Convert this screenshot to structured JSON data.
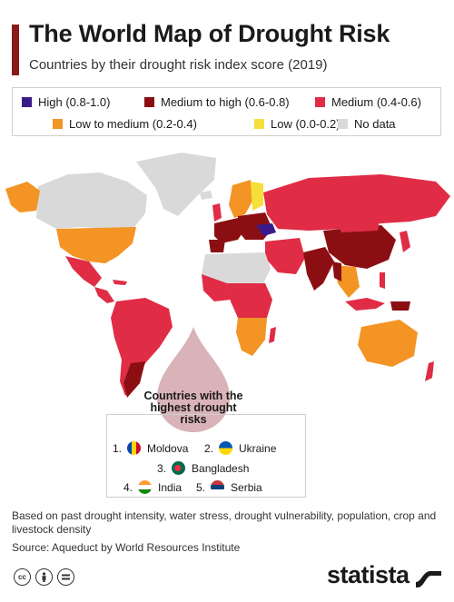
{
  "header": {
    "title": "The World Map of Drought Risk",
    "subtitle": "Countries by their drought risk index score (2019)"
  },
  "legend": [
    {
      "label": "High (0.8-1.0)",
      "color": "#3b1a8a"
    },
    {
      "label": "Medium to high (0.6-0.8)",
      "color": "#8b0f12"
    },
    {
      "label": "Medium (0.4-0.6)",
      "color": "#e02c45"
    },
    {
      "label": "Low to medium (0.2-0.4)",
      "color": "#f39425"
    },
    {
      "label": "Low (0.0-0.2)",
      "color": "#f7df3b"
    },
    {
      "label": "No data",
      "color": "#d9d9d9"
    }
  ],
  "callout": {
    "heading": "Countries with the highest drought risks",
    "drop_color": "#d9b3b8"
  },
  "top_countries": [
    {
      "rank": "1.",
      "name": "Moldova"
    },
    {
      "rank": "2.",
      "name": "Ukraine"
    },
    {
      "rank": "3.",
      "name": "Bangladesh"
    },
    {
      "rank": "4.",
      "name": "India"
    },
    {
      "rank": "5.",
      "name": "Serbia"
    }
  ],
  "footnote": "Based on past drought intensity, water stress, drought vulnerability, population, crop and livestock density",
  "source": "Source: Aqueduct by World Resources Institute",
  "license_icons": [
    "cc-icon",
    "person-icon",
    "equals-icon"
  ],
  "brand": "statista"
}
